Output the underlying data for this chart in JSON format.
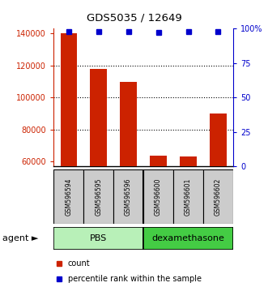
{
  "title": "GDS5035 / 12649",
  "samples": [
    "GSM596594",
    "GSM596595",
    "GSM596596",
    "GSM596600",
    "GSM596601",
    "GSM596602"
  ],
  "counts": [
    140000,
    118000,
    110000,
    63500,
    63000,
    90000
  ],
  "percentile_ranks": [
    98,
    98,
    98,
    97,
    98,
    98
  ],
  "bar_color": "#CC2200",
  "dot_color": "#0000CC",
  "ylim_left": [
    57000,
    143000
  ],
  "ylim_right": [
    0,
    100
  ],
  "yticks_left": [
    60000,
    80000,
    100000,
    120000,
    140000
  ],
  "yticks_right": [
    0,
    25,
    50,
    75,
    100
  ],
  "ytick_labels_left": [
    "60000",
    "80000",
    "100000",
    "120000",
    "140000"
  ],
  "ytick_labels_right": [
    "0",
    "25",
    "50",
    "75",
    "100%"
  ],
  "left_axis_color": "#CC2200",
  "right_axis_color": "#0000CC",
  "bg_color": "#ffffff",
  "sample_box_color": "#cccccc",
  "pbs_color": "#b8f0b8",
  "dex_color": "#44cc44",
  "pbs_label": "PBS",
  "dex_label": "dexamethasone",
  "agent_label": "agent ►",
  "legend_count": "count",
  "legend_pct": "percentile rank within the sample"
}
